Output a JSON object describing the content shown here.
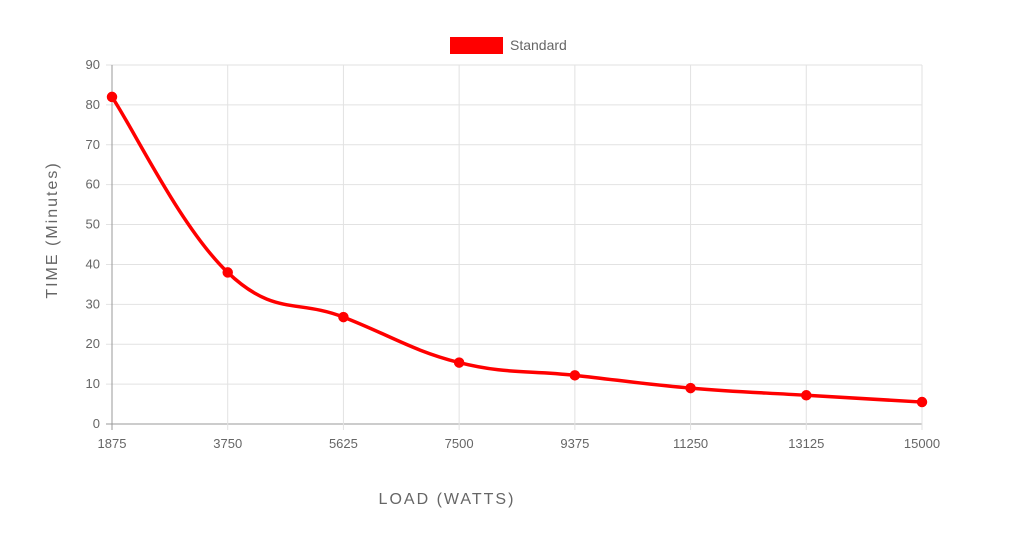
{
  "chart_data": {
    "type": "line",
    "x": [
      1875,
      3750,
      5625,
      7500,
      9375,
      11250,
      13125,
      15000
    ],
    "x_tick_labels": [
      "1875",
      "3750",
      "5625",
      "7500",
      "9375",
      "11250",
      "13125",
      "15000"
    ],
    "series": [
      {
        "name": "Standard",
        "values": [
          82,
          38,
          26.8,
          15.4,
          12.2,
          9,
          7.2,
          5.5
        ],
        "color": "#ff0000"
      }
    ],
    "y_ticks": [
      0,
      10,
      20,
      30,
      40,
      50,
      60,
      70,
      80,
      90
    ],
    "xlabel": "LOAD (WATTS)",
    "ylabel": "TIME (Minutes)",
    "ylim": [
      0,
      90
    ],
    "grid": true,
    "legend_position": "top-center"
  }
}
